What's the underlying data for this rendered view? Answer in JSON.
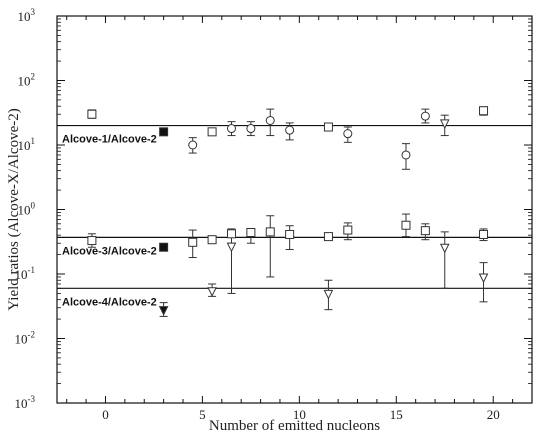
{
  "chart_data": {
    "type": "scatter",
    "xlabel": "Number of emitted nucleons",
    "ylabel": "Yield ratios (Alcove-X/Alcove-2)",
    "xlim": [
      -2.5,
      22
    ],
    "xticks": [
      0,
      5,
      10,
      15,
      20
    ],
    "y_scale": "log",
    "ylim": [
      0.001,
      1000
    ],
    "yticks": [
      {
        "mantissa": "10",
        "exponent": "-3",
        "value": 0.001
      },
      {
        "mantissa": "10",
        "exponent": "-2",
        "value": 0.01
      },
      {
        "mantissa": "10",
        "exponent": "-1",
        "value": 0.1
      },
      {
        "mantissa": "10",
        "exponent": "0",
        "value": 1
      },
      {
        "mantissa": "10",
        "exponent": "1",
        "value": 10
      },
      {
        "mantissa": "10",
        "exponent": "2",
        "value": 100
      },
      {
        "mantissa": "10",
        "exponent": "3",
        "value": 1000
      }
    ],
    "legend": "none",
    "grid": false,
    "series": [
      {
        "name": "Alcove-1/Alcove-2",
        "reference_line": 20,
        "points": [
          {
            "x": -0.7,
            "y": 30,
            "lo": 26,
            "hi": 35,
            "marker": "open-square"
          },
          {
            "x": 3,
            "y": 16,
            "lo": 14.5,
            "hi": 17.5,
            "marker": "filled-square"
          },
          {
            "x": 4.5,
            "y": 10,
            "lo": 7.5,
            "hi": 13,
            "marker": "open-circle"
          },
          {
            "x": 5.5,
            "y": 16,
            "lo": 15,
            "hi": 17,
            "marker": "open-square"
          },
          {
            "x": 6.5,
            "y": 18,
            "lo": 14,
            "hi": 23,
            "marker": "open-circle"
          },
          {
            "x": 7.5,
            "y": 18,
            "lo": 14,
            "hi": 23,
            "marker": "open-circle"
          },
          {
            "x": 8.5,
            "y": 24,
            "lo": 14,
            "hi": 36,
            "marker": "open-circle"
          },
          {
            "x": 9.5,
            "y": 17,
            "lo": 12,
            "hi": 22,
            "marker": "open-circle"
          },
          {
            "x": 11.5,
            "y": 19,
            "lo": 17,
            "hi": 21,
            "marker": "open-square"
          },
          {
            "x": 12.5,
            "y": 15,
            "lo": 11,
            "hi": 19,
            "marker": "open-circle"
          },
          {
            "x": 15.5,
            "y": 7,
            "lo": 4.2,
            "hi": 10.5,
            "marker": "open-circle"
          },
          {
            "x": 16.5,
            "y": 28,
            "lo": 22,
            "hi": 36,
            "marker": "open-circle"
          },
          {
            "x": 17.5,
            "y": 22,
            "lo": 14,
            "hi": 29,
            "marker": "open-triangle-down"
          },
          {
            "x": 19.5,
            "y": 34,
            "lo": 29,
            "hi": 39,
            "marker": "open-square"
          }
        ]
      },
      {
        "name": "Alcove-3/Alcove-2",
        "reference_line": 0.37,
        "points": [
          {
            "x": -0.7,
            "y": 0.33,
            "lo": 0.26,
            "hi": 0.42,
            "marker": "open-square"
          },
          {
            "x": 3,
            "y": 0.26,
            "lo": 0.23,
            "hi": 0.29,
            "marker": "filled-square"
          },
          {
            "x": 4.5,
            "y": 0.31,
            "lo": 0.18,
            "hi": 0.48,
            "marker": "open-square"
          },
          {
            "x": 5.5,
            "y": 0.34,
            "lo": 0.31,
            "hi": 0.37,
            "marker": "open-square"
          },
          {
            "x": 6.5,
            "y": 0.42,
            "lo": 0.3,
            "hi": 0.5,
            "marker": "open-square"
          },
          {
            "x": 7.5,
            "y": 0.44,
            "lo": 0.3,
            "hi": 0.5,
            "marker": "open-square"
          },
          {
            "x": 8.5,
            "y": 0.45,
            "lo": 0.09,
            "hi": 0.8,
            "marker": "open-square"
          },
          {
            "x": 9.5,
            "y": 0.41,
            "lo": 0.24,
            "hi": 0.56,
            "marker": "open-square"
          },
          {
            "x": 11.5,
            "y": 0.38,
            "lo": 0.34,
            "hi": 0.42,
            "marker": "open-square"
          },
          {
            "x": 12.5,
            "y": 0.48,
            "lo": 0.34,
            "hi": 0.62,
            "marker": "open-square"
          },
          {
            "x": 15.5,
            "y": 0.57,
            "lo": 0.38,
            "hi": 0.85,
            "marker": "open-square"
          },
          {
            "x": 16.5,
            "y": 0.47,
            "lo": 0.34,
            "hi": 0.6,
            "marker": "open-square"
          },
          {
            "x": 19.5,
            "y": 0.41,
            "lo": 0.33,
            "hi": 0.5,
            "marker": "open-square"
          }
        ]
      },
      {
        "name": "Alcove-4/Alcove-2",
        "reference_line": 0.06,
        "points": [
          {
            "x": 3,
            "y": 0.028,
            "lo": 0.022,
            "hi": 0.036,
            "marker": "filled-triangle-down"
          },
          {
            "x": 5.5,
            "y": 0.055,
            "lo": 0.045,
            "hi": 0.07,
            "marker": "open-triangle-down"
          },
          {
            "x": 6.5,
            "y": 0.27,
            "lo": 0.05,
            "hi": 0.47,
            "marker": "open-triangle-down"
          },
          {
            "x": 11.5,
            "y": 0.05,
            "lo": 0.028,
            "hi": 0.08,
            "marker": "open-triangle-down"
          },
          {
            "x": 17.5,
            "y": 0.26,
            "lo": 0.06,
            "hi": 0.45,
            "marker": "open-triangle-down"
          },
          {
            "x": 19.5,
            "y": 0.09,
            "lo": 0.037,
            "hi": 0.15,
            "marker": "open-triangle-down"
          }
        ]
      }
    ]
  }
}
